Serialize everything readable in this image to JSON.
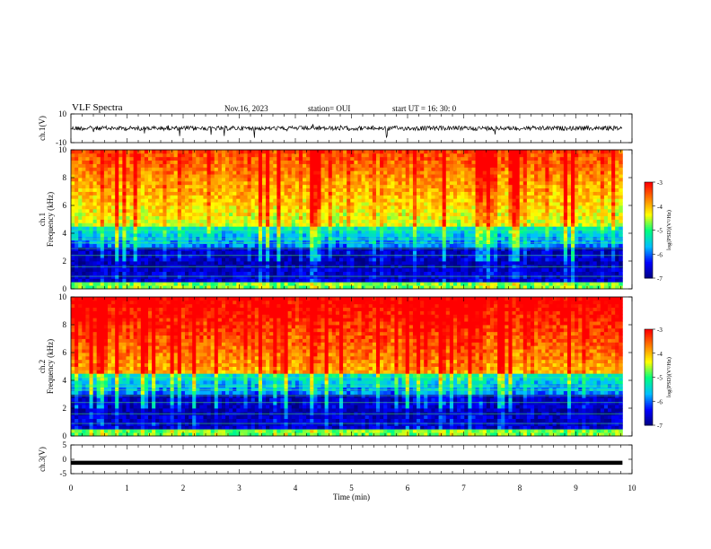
{
  "header": {
    "title": "VLF Spectra",
    "date": "Nov.16, 2023",
    "station": "station= OUI",
    "start": "start  UT =   16: 30: 0"
  },
  "chart_data": [
    {
      "type": "line",
      "panel": "ch1-waveform",
      "ylabel": "ch.1(V)",
      "yticks": [
        "10",
        "-10"
      ],
      "ylim": [
        -10,
        10
      ],
      "xlim": [
        0,
        10
      ],
      "x": [
        0,
        9.83
      ],
      "y_baseline": 0,
      "trace_color": "#000000"
    },
    {
      "type": "heatmap",
      "panel": "ch1-spectrogram",
      "ylabel": "ch.1\nFrequency (kHz)",
      "ylabel_lines": [
        "ch.1",
        "Frequency (kHz)"
      ],
      "yticks": [
        "0",
        "2",
        "4",
        "6",
        "8",
        "10"
      ],
      "ylim": [
        0,
        10
      ],
      "xlim": [
        0,
        10
      ],
      "x_data_end": 9.83,
      "colorbar": {
        "label": "log(PSD)(V²/Hz)",
        "ticks": [
          "-3",
          "-4",
          "-5",
          "-6",
          "-7"
        ],
        "range": [
          -7,
          -3
        ]
      }
    },
    {
      "type": "heatmap",
      "panel": "ch2-spectrogram",
      "ylabel": "ch.2\nFrequency (kHz)",
      "ylabel_lines": [
        "ch.2",
        "Frequency (kHz)"
      ],
      "yticks": [
        "0",
        "2",
        "4",
        "6",
        "8",
        "10"
      ],
      "ylim": [
        0,
        10
      ],
      "xlim": [
        0,
        10
      ],
      "x_data_end": 9.83,
      "colorbar": {
        "label": "log(PSD)(V²/Hz)",
        "ticks": [
          "-3",
          "-4",
          "-5",
          "-6",
          "-7"
        ],
        "range": [
          -7,
          -3
        ]
      }
    },
    {
      "type": "line",
      "panel": "ch3-waveform",
      "ylabel": "ch.3(V)",
      "yticks": [
        "5",
        "0",
        "-5"
      ],
      "ylim": [
        -5,
        5
      ],
      "xlim": [
        0,
        10
      ],
      "x": [
        0,
        9.83
      ],
      "y": [
        -1.2,
        -1.2
      ],
      "trace_color": "#000000"
    }
  ],
  "xaxis": {
    "label": "Time (min)",
    "ticks": [
      "0",
      "1",
      "2",
      "3",
      "4",
      "5",
      "6",
      "7",
      "8",
      "9",
      "10"
    ]
  },
  "colors": {
    "background": "#ffffff",
    "colormap": [
      "#00007f",
      "#0000ff",
      "#00bfff",
      "#00ff7f",
      "#ffff00",
      "#ff7f00",
      "#ff0000"
    ]
  }
}
